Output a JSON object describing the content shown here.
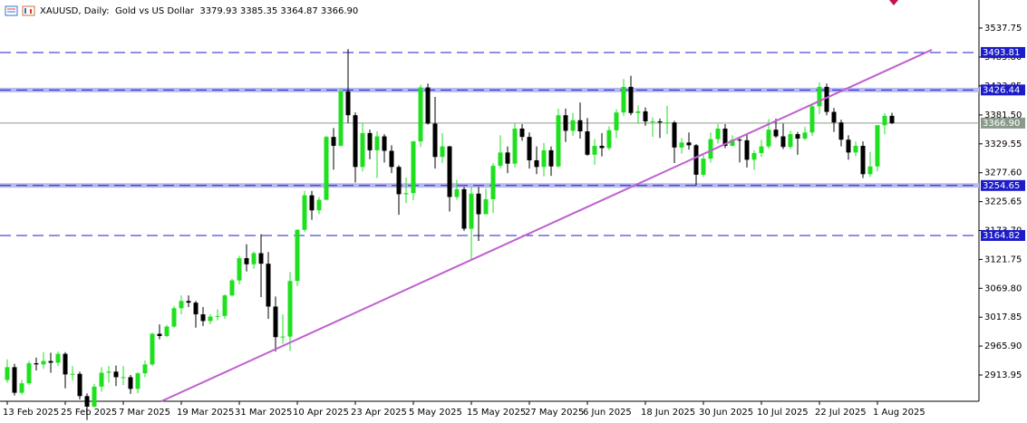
{
  "chart_data": {
    "type": "candlestick",
    "title": "XAUUSD, Daily:  Gold vs US Dollar  3379.93 3385.35 3364.87 3366.90",
    "categories": [
      "13 Feb 2025",
      null,
      null,
      null,
      null,
      null,
      null,
      null,
      "25 Feb 2025",
      null,
      null,
      null,
      null,
      null,
      null,
      null,
      "7 Mar 2025",
      null,
      null,
      null,
      null,
      null,
      null,
      null,
      "19 Mar 2025",
      null,
      null,
      null,
      null,
      null,
      null,
      null,
      "31 Mar 2025",
      null,
      null,
      null,
      null,
      null,
      null,
      null,
      "10 Apr 2025",
      null,
      null,
      null,
      null,
      null,
      null,
      null,
      "23 Apr 2025",
      null,
      null,
      null,
      null,
      null,
      null,
      null,
      "5 May 2025",
      null,
      null,
      null,
      null,
      null,
      null,
      null,
      "15 May 2025",
      null,
      null,
      null,
      null,
      null,
      null,
      null,
      "27 May 2025",
      null,
      null,
      null,
      null,
      null,
      null,
      null,
      "6 Jun 2025",
      null,
      null,
      null,
      null,
      null,
      null,
      null,
      "18 Jun 2025",
      null,
      null,
      null,
      null,
      null,
      null,
      null,
      "30 Jun 2025",
      null,
      null,
      null,
      null,
      null,
      null,
      null,
      "10 Jul 2025",
      null,
      null,
      null,
      null,
      null,
      null,
      null,
      "22 Jul 2025",
      null,
      null,
      null,
      null,
      null,
      null,
      null,
      "1 Aug 2025",
      null,
      null
    ],
    "open": [
      2905,
      2928,
      2882,
      2899,
      2935,
      2933,
      2939,
      2936,
      2952,
      2915,
      2916,
      2876,
      2857,
      2893,
      2918,
      2920,
      2910,
      2910,
      2889,
      2917,
      2933,
      2988,
      2984,
      3001,
      3034,
      3047,
      3044,
      3023,
      3011,
      3019,
      3020,
      3057,
      3084,
      3124,
      3113,
      3133,
      3114,
      3037,
      2982,
      2983,
      3083,
      3175,
      3237,
      3210,
      3229,
      3342,
      3326,
      3424,
      3381,
      3288,
      3349,
      3318,
      3343,
      3317,
      3288,
      3239,
      3241,
      3334,
      3431,
      3366,
      3306,
      3325,
      3234,
      3248,
      3177,
      3240,
      3203,
      3230,
      3290,
      3314,
      3294,
      3357,
      3342,
      3300,
      3288,
      3318,
      3289,
      3381,
      3353,
      3372,
      3352,
      3310,
      3326,
      3322,
      3354,
      3386,
      3432,
      3385,
      3388,
      3370,
      3370,
      3368,
      3368,
      3323,
      3332,
      3327,
      3274,
      3303,
      3338,
      3357,
      3326,
      3337,
      3336,
      3301,
      3313,
      3325,
      3355,
      3343,
      3324,
      3347,
      3339,
      3350,
      3397,
      3432,
      3387,
      3368,
      3337,
      3314,
      3326,
      3275,
      3289,
      3363,
      3379.93
    ],
    "high": [
      2942,
      2934,
      2905,
      2939,
      2945,
      2955,
      2954,
      2956,
      2955,
      2930,
      2920,
      2881,
      2898,
      2928,
      2930,
      2931,
      2930,
      2914,
      2919,
      2940,
      2990,
      3005,
      3004,
      3038,
      3057,
      3057,
      3047,
      3036,
      3023,
      3032,
      3059,
      3087,
      3128,
      3149,
      3136,
      3167,
      3135,
      3055,
      3023,
      3099,
      3176,
      3245,
      3245,
      3234,
      3344,
      3358,
      3430,
      3500,
      3386,
      3367,
      3355,
      3352,
      3347,
      3327,
      3291,
      3269,
      3335,
      3436,
      3438,
      3414,
      3349,
      3326,
      3265,
      3252,
      3252,
      3252,
      3249,
      3295,
      3345,
      3325,
      3366,
      3365,
      3350,
      3325,
      3331,
      3325,
      3393,
      3393,
      3385,
      3404,
      3376,
      3338,
      3349,
      3361,
      3392,
      3446,
      3452,
      3399,
      3395,
      3377,
      3375,
      3398,
      3371,
      3340,
      3350,
      3329,
      3310,
      3350,
      3365,
      3365,
      3345,
      3342,
      3347,
      3318,
      3337,
      3374,
      3375,
      3366,
      3353,
      3351,
      3360,
      3402,
      3440,
      3438,
      3394,
      3373,
      3345,
      3334,
      3334,
      3315,
      3363,
      3385,
      3385.35
    ],
    "low": [
      2900,
      2877,
      2879,
      2896,
      2922,
      2925,
      2918,
      2930,
      2890,
      2904,
      2870,
      2833,
      2856,
      2884,
      2900,
      2894,
      2896,
      2880,
      2881,
      2910,
      2930,
      2978,
      2982,
      2999,
      3023,
      3036,
      2999,
      3002,
      3005,
      3012,
      3015,
      3055,
      3077,
      3100,
      3105,
      3054,
      3015,
      2956,
      2970,
      2957,
      3074,
      3171,
      3193,
      3203,
      3228,
      3283,
      3325,
      3367,
      3260,
      3280,
      3302,
      3268,
      3296,
      3277,
      3202,
      3223,
      3228,
      3324,
      3364,
      3285,
      3295,
      3208,
      3229,
      3173,
      3120,
      3155,
      3206,
      3205,
      3285,
      3277,
      3287,
      3335,
      3285,
      3275,
      3271,
      3272,
      3287,
      3333,
      3344,
      3339,
      3308,
      3292,
      3307,
      3318,
      3340,
      3380,
      3381,
      3366,
      3362,
      3342,
      3340,
      3347,
      3295,
      3312,
      3319,
      3255,
      3270,
      3296,
      3330,
      3322,
      3325,
      3296,
      3287,
      3283,
      3306,
      3321,
      3340,
      3320,
      3320,
      3310,
      3336,
      3344,
      3383,
      3381,
      3351,
      3325,
      3301,
      3307,
      3268,
      3270,
      3280,
      3347,
      3364.87
    ],
    "close": [
      2928,
      2882,
      2899,
      2935,
      2933,
      2939,
      2936,
      2952,
      2915,
      2916,
      2876,
      2857,
      2893,
      2918,
      2920,
      2910,
      2910,
      2889,
      2917,
      2933,
      2988,
      2984,
      3001,
      3034,
      3047,
      3044,
      3023,
      3011,
      3019,
      3020,
      3057,
      3084,
      3124,
      3113,
      3133,
      3114,
      3037,
      2982,
      2983,
      3083,
      3175,
      3237,
      3210,
      3229,
      3342,
      3326,
      3424,
      3381,
      3288,
      3349,
      3318,
      3343,
      3317,
      3288,
      3239,
      3241,
      3334,
      3431,
      3366,
      3306,
      3325,
      3234,
      3248,
      3177,
      3240,
      3203,
      3230,
      3290,
      3314,
      3294,
      3357,
      3342,
      3300,
      3288,
      3318,
      3289,
      3381,
      3353,
      3372,
      3352,
      3310,
      3326,
      3322,
      3354,
      3386,
      3432,
      3385,
      3388,
      3370,
      3370,
      3368,
      3368,
      3323,
      3332,
      3327,
      3274,
      3303,
      3338,
      3357,
      3326,
      3337,
      3336,
      3301,
      3313,
      3325,
      3355,
      3343,
      3324,
      3347,
      3339,
      3350,
      3397,
      3432,
      3387,
      3368,
      3337,
      3314,
      3326,
      3275,
      3289,
      3363,
      3379.93,
      3366.9
    ],
    "up_color": "#1ee01e",
    "down_color": "#000000",
    "ylim": [
      2866.7,
      3588.2
    ],
    "yticks": [
      3537.75,
      {
        "value": 3485.8,
        "label": "3485.80"
      },
      3433.85,
      {
        "value": 3381.5,
        "label": "3381.50"
      },
      3329.55,
      {
        "value": 3277.6,
        "label": "3277.60"
      },
      3225.65,
      {
        "value": 3173.7,
        "label": "3173.70"
      },
      3121.75,
      {
        "value": 3069.8,
        "label": "3069.80"
      },
      3017.85,
      {
        "value": 2965.9,
        "label": "2965.90"
      },
      2913.95
    ],
    "hlines": [
      {
        "value": 3493.81,
        "label": "3493.81",
        "highlight": false
      },
      {
        "value": 3426.44,
        "label": "3426.44",
        "highlight": true
      },
      {
        "value": 3254.65,
        "label": "3254.65",
        "highlight": true
      },
      {
        "value": 3164.82,
        "label": "3164.82",
        "highlight": false
      }
    ],
    "hline_color": "#1c1cc8",
    "price_line": {
      "value": 3366.9,
      "label": "3366.90",
      "color": "#8a9a8a"
    },
    "trendline": {
      "x": [
        21.25,
        127.5
      ],
      "y": [
        2866.7,
        3498.7
      ],
      "color": "#c060d0"
    }
  }
}
